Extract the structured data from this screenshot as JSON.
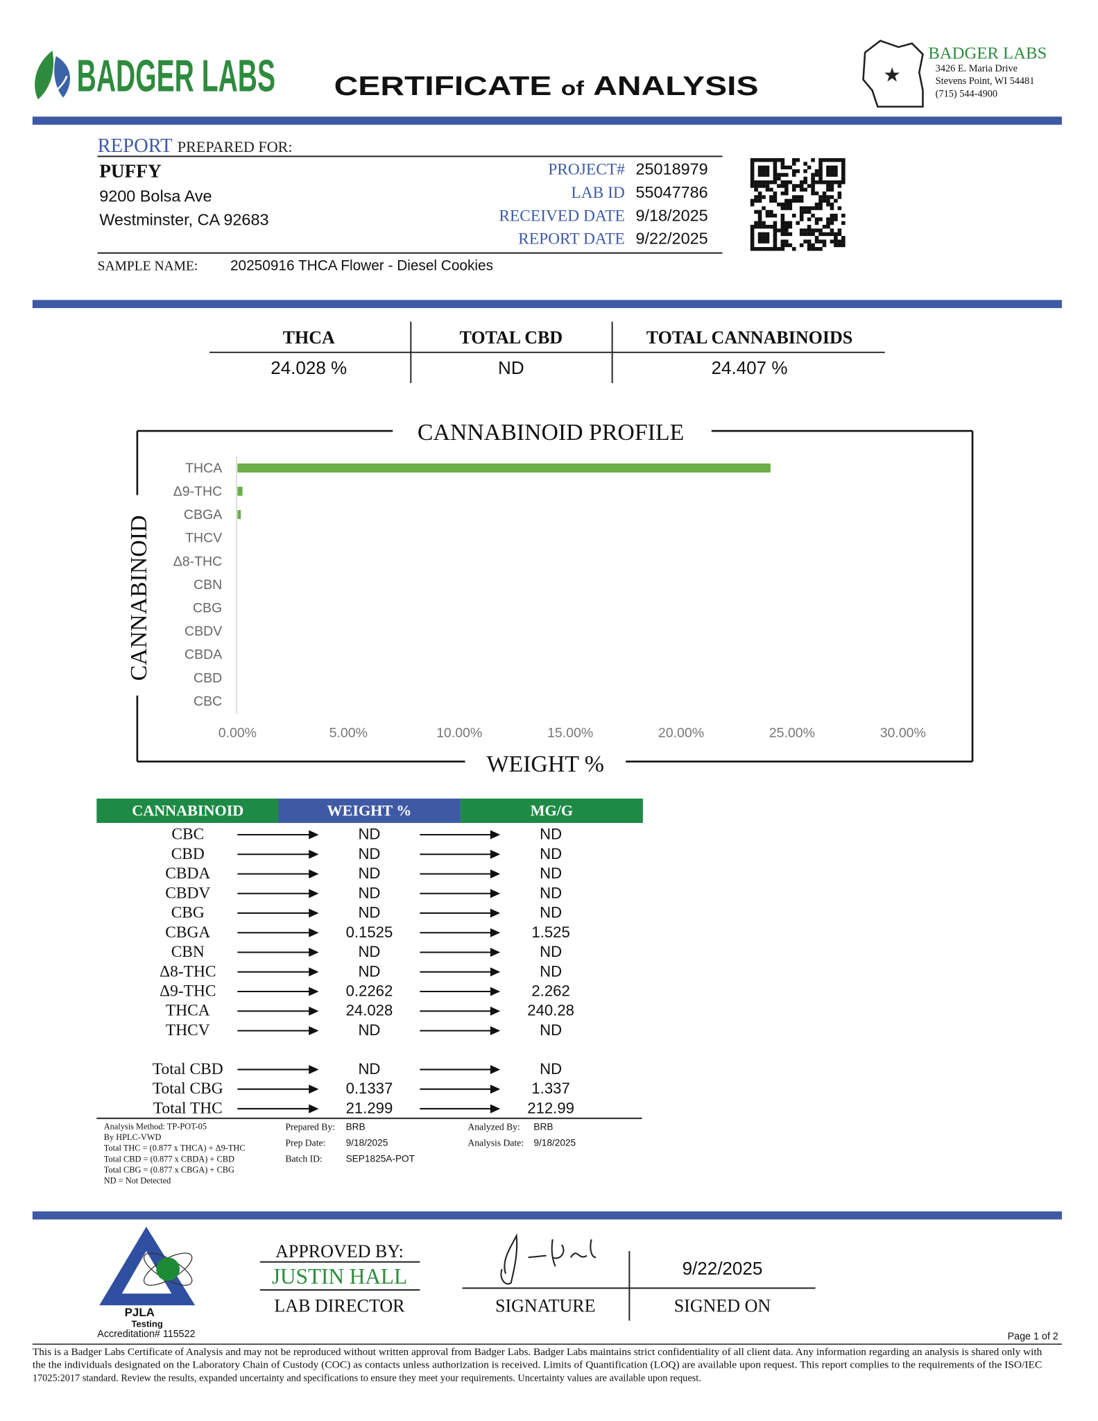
{
  "header": {
    "logo": "BADGER LABS",
    "title": [
      "CERTIFICATE",
      "of",
      "ANALYSIS"
    ],
    "lab": {
      "name": "BADGER LABS",
      "lines": [
        "3426 E. Maria Drive",
        "Stevens Point, WI 54481",
        "(715) 544-4900"
      ]
    }
  },
  "report": {
    "label": "REPORT",
    "prepared_for": "PREPARED FOR:",
    "client": "PUFFY",
    "address": [
      "9200 Bolsa Ave",
      "Westminster, CA  92683"
    ],
    "fields": [
      {
        "label": "PROJECT#",
        "value": "25018979"
      },
      {
        "label": "LAB ID",
        "value": "55047786"
      },
      {
        "label": "RECEIVED DATE",
        "value": "9/18/2025"
      },
      {
        "label": "REPORT DATE",
        "value": "9/22/2025"
      }
    ],
    "sample_label": "SAMPLE NAME:",
    "sample_name": "20250916 THCA Flower - Diesel Cookies"
  },
  "summary": [
    {
      "label": "THCA",
      "value": "24.028 %"
    },
    {
      "label": "TOTAL CBD",
      "value": "ND"
    },
    {
      "label": "TOTAL CANNABINOIDS",
      "value": "24.407 %"
    }
  ],
  "chart_data": {
    "type": "bar",
    "orientation": "horizontal",
    "title": "CANNABINOID PROFILE",
    "x_label": "WEIGHT %",
    "y_label": "CANNABINOID",
    "color": "#6aaf47",
    "categories": [
      "THCA",
      "Δ9-THC",
      "CBGA",
      "THCV",
      "Δ8-THC",
      "CBN",
      "CBG",
      "CBDV",
      "CBDA",
      "CBD",
      "CBC"
    ],
    "values": [
      24.028,
      0.2262,
      0.1525,
      0,
      0,
      0,
      0,
      0,
      0,
      0,
      0
    ],
    "xlim": [
      0,
      30
    ],
    "xticks": [
      {
        "value": 0,
        "label": "0.00%"
      },
      {
        "value": 5,
        "label": "5.00%"
      },
      {
        "value": 10,
        "label": "10.00%"
      },
      {
        "value": 15,
        "label": "15.00%"
      },
      {
        "value": 20,
        "label": "20.00%"
      },
      {
        "value": 25,
        "label": "25.00%"
      },
      {
        "value": 30,
        "label": "30.00%"
      }
    ]
  },
  "table": {
    "headers": [
      "CANNABINOID",
      "WEIGHT %",
      "MG/G"
    ],
    "rows": [
      [
        "CBC",
        "ND",
        "ND"
      ],
      [
        "CBD",
        "ND",
        "ND"
      ],
      [
        "CBDA",
        "ND",
        "ND"
      ],
      [
        "CBDV",
        "ND",
        "ND"
      ],
      [
        "CBG",
        "ND",
        "ND"
      ],
      [
        "CBGA",
        "0.1525",
        "1.525"
      ],
      [
        "CBN",
        "ND",
        "ND"
      ],
      [
        "Δ8-THC",
        "ND",
        "ND"
      ],
      [
        "Δ9-THC",
        "0.2262",
        "2.262"
      ],
      [
        "THCA",
        "24.028",
        "240.28"
      ],
      [
        "THCV",
        "ND",
        "ND"
      ]
    ],
    "totals": [
      [
        "Total CBD",
        "ND",
        "ND"
      ],
      [
        "Total CBG",
        "0.1337",
        "1.337"
      ],
      [
        "Total THC",
        "21.299",
        "212.99"
      ]
    ]
  },
  "notes": {
    "method": [
      "Analysis Method: TP-POT-05",
      "By HPLC-VWD",
      "Total THC = (0.877 x  THCA) + Δ9-THC",
      "Total CBD = (0.877 x  CBDA) + CBD",
      "Total CBG = (0.877 x  CBGA) + CBG",
      "ND = Not Detected"
    ],
    "prep": [
      {
        "label": "Prepared By:",
        "value": "BRB"
      },
      {
        "label": "Prep Date:",
        "value": "9/18/2025"
      },
      {
        "label": "Batch ID:",
        "value": "SEP1825A-POT"
      }
    ],
    "analysis": [
      {
        "label": "Analyzed By:",
        "value": "BRB"
      },
      {
        "label": "Analysis Date:",
        "value": "9/18/2025"
      }
    ]
  },
  "approval": {
    "label": "APPROVED BY:",
    "name": "JUSTIN HALL",
    "role": "LAB DIRECTOR",
    "signature_label": "SIGNATURE",
    "date": "9/22/2025",
    "signed_label": "SIGNED ON"
  },
  "footer": {
    "pjla": "PJLA",
    "pjla_sub": "Testing",
    "accreditation": "Accreditation# 115522",
    "page": "Page 1 of 2",
    "disclaimer": [
      "This is a Badger Labs Certificate of Analysis and may not be reproduced without written approval from Badger Labs. Badger Labs maintains strict confidentiality of all client data. Any information regarding an analysis is shared only with",
      "the the individuals designated on the Laboratory Chain of Custody (COC) as contacts unless authorization is received. Limits of Quantification (LOQ) are available upon request. This report complies to the requirements of the ISO/IEC",
      "17025:2017 standard. Review the results, expanded uncertainty and specifications to ensure they meet your requirements. Uncertainty values are available upon request."
    ]
  }
}
